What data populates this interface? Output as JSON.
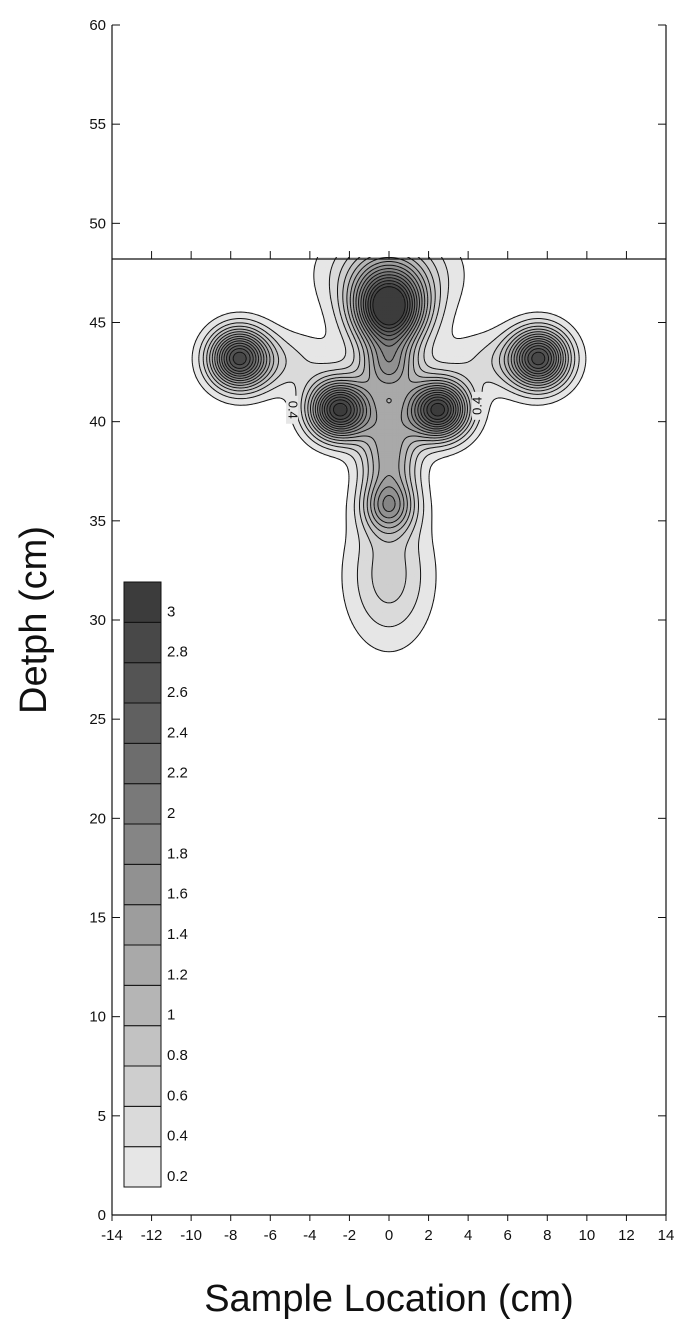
{
  "chart_data": {
    "type": "heatmap",
    "title": "",
    "xlabel": "Sample Location (cm)",
    "ylabel": "Detph (cm)",
    "xlim": [
      -14,
      14
    ],
    "ylim": [
      0,
      60
    ],
    "xticks": [
      -14,
      -12,
      -10,
      -8,
      -6,
      -4,
      -2,
      0,
      2,
      4,
      6,
      8,
      10,
      12,
      14
    ],
    "yticks": [
      0,
      5,
      10,
      15,
      20,
      25,
      30,
      35,
      40,
      45,
      50,
      55,
      60
    ],
    "surface_level": 48.2,
    "contour_levels": [
      0.2,
      0.4,
      0.6,
      0.8,
      1,
      1.2,
      1.4,
      1.6,
      1.8,
      2,
      2.2,
      2.4,
      2.6,
      2.8,
      3
    ],
    "colorbar_labels": [
      "3",
      "2.8",
      "2.6",
      "2.4",
      "2.2",
      "2",
      "1.8",
      "1.6",
      "1.4",
      "1.2",
      "1",
      "0.8",
      "0.6",
      "0.4",
      "0.2"
    ],
    "contour_annotations": [
      {
        "text": "0.4",
        "x": -4.9,
        "y": 40.6
      },
      {
        "text": "0.4",
        "x": 4.5,
        "y": 40.8
      }
    ],
    "peaks": [
      {
        "x": 0,
        "y": 45.7,
        "value": 3.2
      },
      {
        "x": -2.5,
        "y": 40.6,
        "value": 3.1
      },
      {
        "x": 2.5,
        "y": 40.6,
        "value": 3.1
      },
      {
        "x": -7.6,
        "y": 43.2,
        "value": 2.7
      },
      {
        "x": 7.6,
        "y": 43.2,
        "value": 2.7
      }
    ],
    "grid": false,
    "colorscale": [
      "#e6e6e6",
      "#3c3c3c"
    ]
  }
}
